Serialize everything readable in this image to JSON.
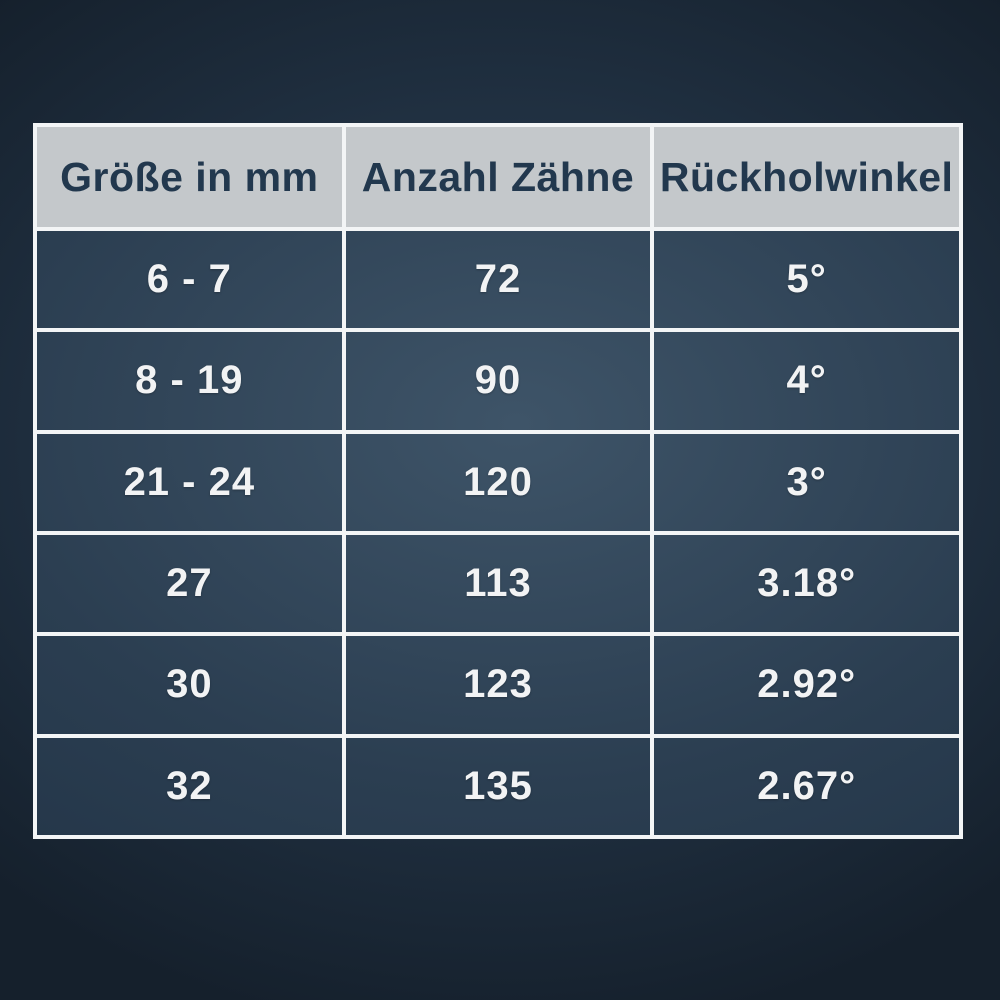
{
  "chart_data": {
    "type": "table",
    "title": "",
    "columns": [
      "Größe in mm",
      "Anzahl Zähne",
      "Rückholwinkel"
    ],
    "rows": [
      [
        "6 - 7",
        "72",
        "5°"
      ],
      [
        "8 - 19",
        "90",
        "4°"
      ],
      [
        "21 - 24",
        "120",
        "3°"
      ],
      [
        "27",
        "113",
        "3.18°"
      ],
      [
        "30",
        "123",
        "2.92°"
      ],
      [
        "32",
        "135",
        "2.67°"
      ]
    ]
  },
  "colors": {
    "background_center": "#2c3f51",
    "background_edge": "#15202c",
    "table_center": "#3e5468",
    "table_edge": "#223447",
    "header_background": "#c4c8cb",
    "header_text": "#22384e",
    "cell_text": "#f2f3f4",
    "grid_border": "#f3f5f6"
  }
}
